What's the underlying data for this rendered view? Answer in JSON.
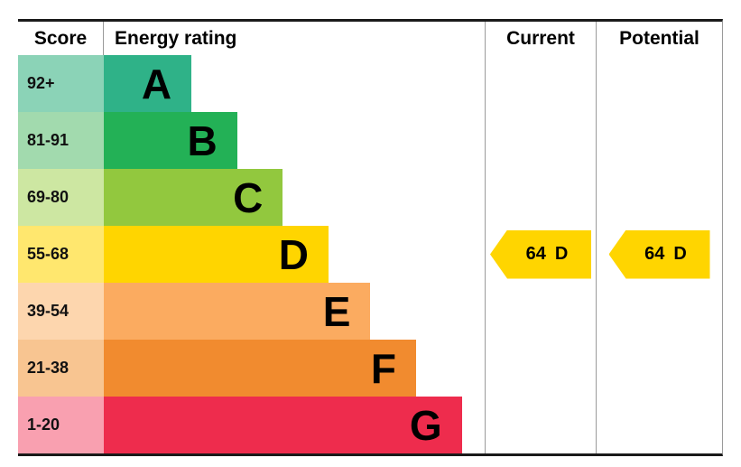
{
  "header": {
    "score": "Score",
    "energy_rating": "Energy rating",
    "current": "Current",
    "potential": "Potential"
  },
  "bands": [
    {
      "range": "92+",
      "letter": "A",
      "bar_color": "#2fb288",
      "range_bg": "#8bd3b7",
      "width_pct": 23
    },
    {
      "range": "81-91",
      "letter": "B",
      "bar_color": "#23b156",
      "range_bg": "#a2daae",
      "width_pct": 35
    },
    {
      "range": "69-80",
      "letter": "C",
      "bar_color": "#92c83e",
      "range_bg": "#cde7a2",
      "width_pct": 47
    },
    {
      "range": "55-68",
      "letter": "D",
      "bar_color": "#ffd500",
      "range_bg": "#ffe76e",
      "width_pct": 59
    },
    {
      "range": "39-54",
      "letter": "E",
      "bar_color": "#fbab60",
      "range_bg": "#fdd6ae",
      "width_pct": 70
    },
    {
      "range": "21-38",
      "letter": "F",
      "bar_color": "#f18b2f",
      "range_bg": "#f8c591",
      "width_pct": 82
    },
    {
      "range": "1-20",
      "letter": "G",
      "bar_color": "#ee2c4d",
      "range_bg": "#f9a0b0",
      "width_pct": 94
    }
  ],
  "current": {
    "value": "64",
    "rating": "D",
    "arrow_color": "#ffd500"
  },
  "potential": {
    "value": "64",
    "rating": "D",
    "arrow_color": "#ffd500"
  },
  "chart_data": {
    "type": "bar",
    "title": "Energy rating",
    "columns": [
      "Score",
      "Energy rating",
      "Current",
      "Potential"
    ],
    "categories": [
      "A",
      "B",
      "C",
      "D",
      "E",
      "F",
      "G"
    ],
    "score_ranges": [
      "92+",
      "81-91",
      "69-80",
      "55-68",
      "39-54",
      "21-38",
      "1-20"
    ],
    "band_colors": [
      "#2fb288",
      "#23b156",
      "#92c83e",
      "#ffd500",
      "#fbab60",
      "#f18b2f",
      "#ee2c4d"
    ],
    "current": {
      "value": 64,
      "rating": "D"
    },
    "potential": {
      "value": 64,
      "rating": "D"
    },
    "legend_position": "none",
    "grid": false
  }
}
